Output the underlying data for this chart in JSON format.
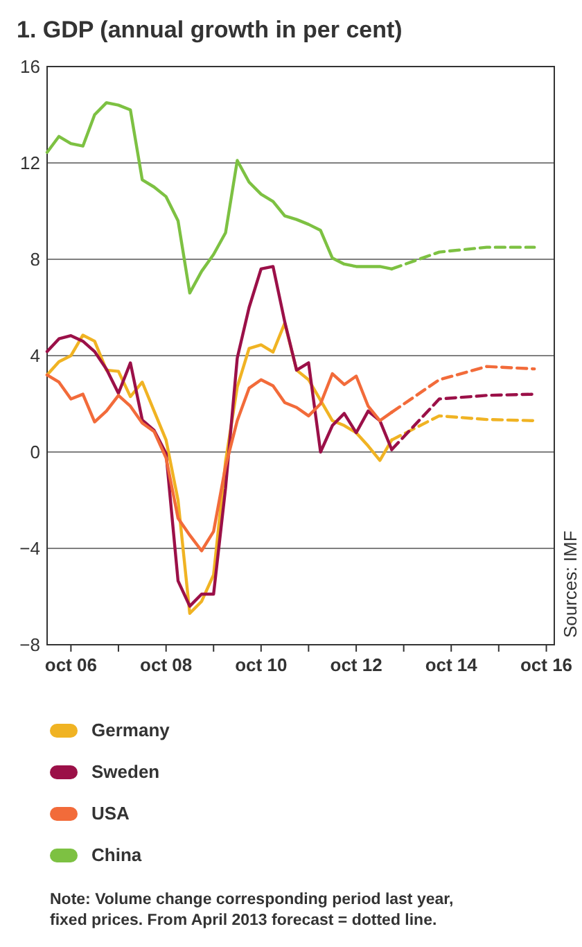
{
  "chart_data": {
    "type": "line",
    "title": "1. GDP (annual growth in per cent)",
    "x": [
      "2006-04",
      "2006-07",
      "2006-10",
      "2007-01",
      "2007-04",
      "2007-07",
      "2007-10",
      "2008-01",
      "2008-04",
      "2008-07",
      "2008-10",
      "2009-01",
      "2009-04",
      "2009-07",
      "2009-10",
      "2010-01",
      "2010-04",
      "2010-07",
      "2010-10",
      "2011-01",
      "2011-04",
      "2011-07",
      "2011-10",
      "2012-01",
      "2012-04",
      "2012-07",
      "2012-10",
      "2013-01",
      "2013-04",
      "2013-07"
    ],
    "series": [
      {
        "name": "Germany",
        "color": "#f0b323",
        "values": [
          3.2,
          3.75,
          4.0,
          4.85,
          4.6,
          3.4,
          3.35,
          2.3,
          2.9,
          1.7,
          0.5,
          -2.0,
          -6.7,
          -6.2,
          -5.1,
          -0.4,
          2.7,
          4.3,
          4.45,
          4.15,
          5.35,
          3.4,
          3.0,
          2.15,
          1.3,
          1.1,
          0.8,
          0.25,
          -0.35,
          0.5
        ]
      },
      {
        "name": "Sweden",
        "color": "#9b1048",
        "values": [
          4.17,
          4.7,
          4.83,
          4.6,
          4.17,
          3.44,
          2.44,
          3.7,
          1.33,
          0.9,
          -0.06,
          -5.35,
          -6.4,
          -5.9,
          -5.9,
          -1.5,
          3.9,
          6.0,
          7.6,
          7.7,
          5.4,
          3.4,
          3.7,
          0.0,
          1.1,
          1.6,
          0.8,
          1.7,
          1.3,
          0.1
        ]
      },
      {
        "name": "USA",
        "color": "#f26b3a",
        "values": [
          3.2,
          2.9,
          2.2,
          2.4,
          1.25,
          1.7,
          2.35,
          1.9,
          1.2,
          0.85,
          -0.25,
          -2.75,
          -3.45,
          -4.1,
          -3.3,
          -0.6,
          1.3,
          2.65,
          3.0,
          2.75,
          2.05,
          1.85,
          1.5,
          2.0,
          3.25,
          2.8,
          3.15,
          1.9,
          1.3,
          1.65
        ]
      },
      {
        "name": "China",
        "color": "#7dc142",
        "values": [
          12.44,
          13.1,
          12.8,
          12.7,
          14.0,
          14.5,
          14.4,
          14.2,
          11.3,
          11.0,
          10.6,
          9.6,
          6.6,
          7.5,
          8.2,
          9.1,
          12.1,
          11.2,
          10.7,
          10.4,
          9.8,
          9.65,
          9.45,
          9.2,
          8.05,
          7.8,
          7.7,
          7.7,
          7.7,
          7.6
        ]
      },
      {
        "color": "#f0b323",
        "line_style": "dashed",
        "x": [
          "2013-07",
          "2014-07",
          "2015-07",
          "2016-07"
        ],
        "values": [
          0.5,
          1.5,
          1.35,
          1.3
        ]
      },
      {
        "color": "#9b1048",
        "line_style": "dashed",
        "x": [
          "2013-07",
          "2014-07",
          "2015-07",
          "2016-07"
        ],
        "values": [
          0.1,
          2.2,
          2.35,
          2.4
        ]
      },
      {
        "color": "#f26b3a",
        "line_style": "dashed",
        "x": [
          "2013-07",
          "2014-07",
          "2015-07",
          "2016-07"
        ],
        "values": [
          1.65,
          3.0,
          3.55,
          3.45
        ]
      },
      {
        "color": "#7dc142",
        "line_style": "dashed",
        "x": [
          "2013-07",
          "2014-07",
          "2015-07",
          "2016-07"
        ],
        "values": [
          7.6,
          8.3,
          8.5,
          8.5
        ]
      }
    ],
    "line_style": "solid",
    "xlim": [
      "2006-04",
      "2016-12"
    ],
    "xticks": [
      {
        "value": "2006-10",
        "label": "oct 06"
      },
      {
        "value": "2007-10",
        "label": null
      },
      {
        "value": "2008-10",
        "label": "oct 08"
      },
      {
        "value": "2009-10",
        "label": null
      },
      {
        "value": "2010-10",
        "label": "oct 10"
      },
      {
        "value": "2011-10",
        "label": null
      },
      {
        "value": "2012-10",
        "label": "oct 12"
      },
      {
        "value": "2013-10",
        "label": null
      },
      {
        "value": "2014-10",
        "label": "oct 14"
      },
      {
        "value": "2015-10",
        "label": null
      },
      {
        "value": "2016-10",
        "label": "oct 16"
      }
    ],
    "ylim": [
      -8,
      16
    ],
    "yticks": [
      {
        "value": -8,
        "label": "−8"
      },
      {
        "value": -4,
        "label": "−4"
      },
      0,
      4,
      8,
      12,
      16
    ],
    "grid": "y",
    "legend": "bottom",
    "annotations": [
      "Sources: IMF",
      "Note: Volume change corresponding period last year, fixed prices. From April 2013 forecast = dotted line."
    ]
  }
}
